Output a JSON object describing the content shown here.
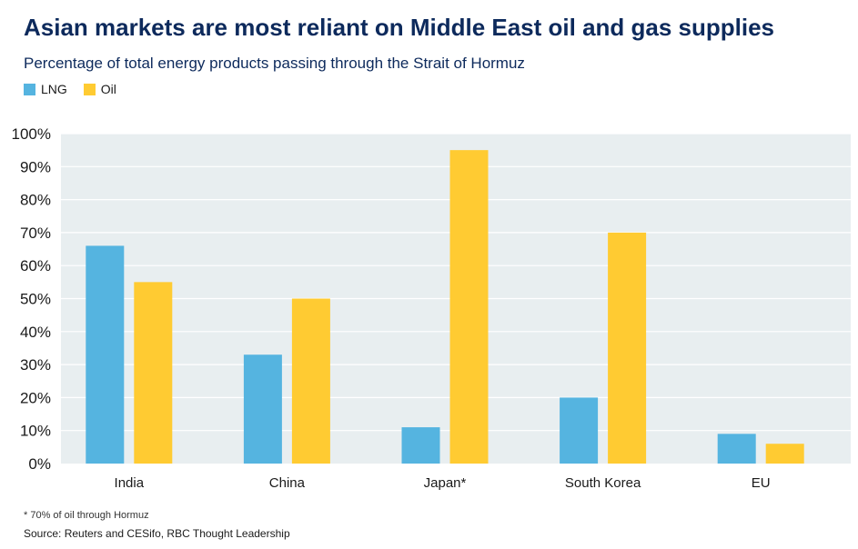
{
  "title": "Asian markets are most reliant on Middle East oil and gas supplies",
  "subtitle": "Percentage of total energy products passing through the Strait of Hormuz",
  "footnote": "* 70% of oil through Hormuz",
  "source": "Source: Reuters and CESifo, RBC Thought Leadership",
  "colors": {
    "lng": "#55b4e0",
    "oil": "#ffcb32",
    "plot_bg": "#e8eef0",
    "grid": "#ffffff"
  },
  "chart_data": {
    "type": "bar",
    "categories": [
      "India",
      "China",
      "Japan*",
      "South Korea",
      "EU"
    ],
    "series": [
      {
        "name": "LNG",
        "values": [
          66,
          33,
          11,
          20,
          9
        ]
      },
      {
        "name": "Oil",
        "values": [
          55,
          50,
          95,
          70,
          6
        ]
      }
    ],
    "ylim": [
      0,
      100
    ],
    "yticks": [
      0,
      10,
      20,
      30,
      40,
      50,
      60,
      70,
      80,
      90,
      100
    ],
    "ytick_labels": [
      "0%",
      "10%",
      "20%",
      "30%",
      "40%",
      "50%",
      "60%",
      "70%",
      "80%",
      "90%",
      "100%"
    ],
    "legend_placement": "top-left",
    "grid": true
  }
}
